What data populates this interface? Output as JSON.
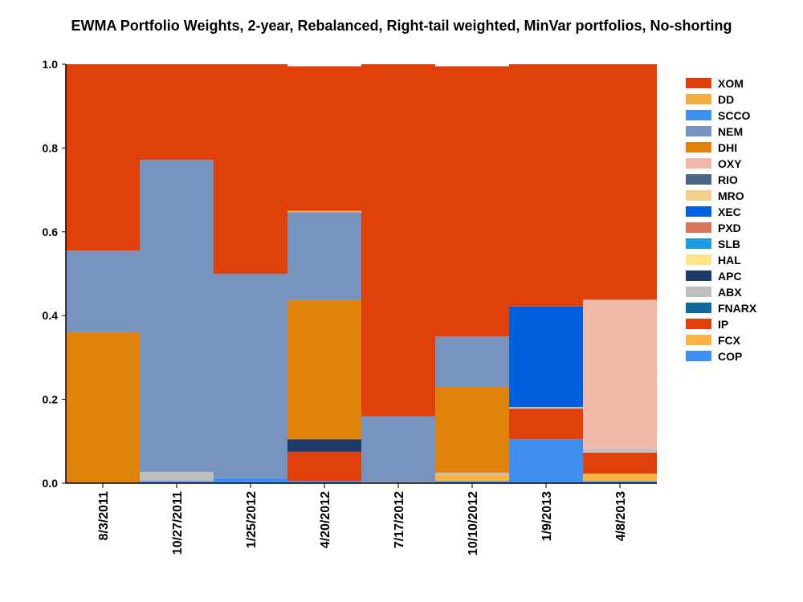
{
  "chart_data": {
    "type": "bar",
    "stacked": true,
    "title": "EWMA Portfolio Weights, 2-year, Rebalanced, Right-tail weighted, MinVar portfolios, No-shorting",
    "xlabel": "",
    "ylabel": "",
    "ylim": [
      0,
      1
    ],
    "yticks": [
      "0.0",
      "0.2",
      "0.4",
      "0.6",
      "0.8",
      "1.0"
    ],
    "grid": false,
    "legend_position": "right",
    "categories": [
      "8/3/2011",
      "10/27/2011",
      "1/25/2012",
      "4/20/2012",
      "7/17/2012",
      "10/10/2012",
      "1/9/2013",
      "4/8/2013"
    ],
    "series": [
      {
        "name": "XOM",
        "color": "#E0400A",
        "values": [
          0.445,
          0.228,
          0.5,
          0.345,
          0.84,
          0.645,
          0.578,
          0.562
        ]
      },
      {
        "name": "DD",
        "color": "#F4AD42",
        "values": [
          0,
          0,
          0,
          0.003,
          0,
          0,
          0,
          0
        ]
      },
      {
        "name": "SCCO",
        "color": "#3F8FEF",
        "values": [
          0,
          0,
          0,
          0,
          0,
          0,
          0,
          0
        ]
      },
      {
        "name": "NEM",
        "color": "#7893BE",
        "values": [
          0.195,
          0.745,
          0.488,
          0.21,
          0.158,
          0.12,
          0,
          0
        ]
      },
      {
        "name": "DHI",
        "color": "#E0830A",
        "values": [
          0.36,
          0,
          0,
          0.332,
          0,
          0.205,
          0,
          0
        ]
      },
      {
        "name": "OXY",
        "color": "#F0B9A9",
        "values": [
          0,
          0,
          0,
          0,
          0,
          0,
          0,
          0.355
        ]
      },
      {
        "name": "RIO",
        "color": "#4F6487",
        "values": [
          0,
          0,
          0,
          0,
          0,
          0,
          0,
          0
        ]
      },
      {
        "name": "MRO",
        "color": "#F2CF8E",
        "values": [
          0,
          0,
          0,
          0,
          0,
          0,
          0,
          0
        ]
      },
      {
        "name": "XEC",
        "color": "#0060DE",
        "values": [
          0,
          0,
          0,
          0,
          0,
          0,
          0.24,
          0
        ]
      },
      {
        "name": "PXD",
        "color": "#D5765A",
        "values": [
          0,
          0,
          0,
          0,
          0,
          0,
          0,
          0
        ]
      },
      {
        "name": "SLB",
        "color": "#1D9BDF",
        "values": [
          0,
          0,
          0,
          0,
          0,
          0,
          0,
          0
        ]
      },
      {
        "name": "HAL",
        "color": "#FDE485",
        "values": [
          0,
          0,
          0,
          0,
          0,
          0,
          0,
          0
        ]
      },
      {
        "name": "APC",
        "color": "#1D3A6A",
        "values": [
          0,
          0,
          0,
          0.03,
          0,
          0,
          0,
          0
        ]
      },
      {
        "name": "ABX",
        "color": "#BFBFBF",
        "values": [
          0,
          0.022,
          0,
          0,
          0.002,
          0.005,
          0.004,
          0.01
        ]
      },
      {
        "name": "FNARX",
        "color": "#0F6A9A",
        "values": [
          0,
          0,
          0,
          0,
          0,
          0,
          0,
          0
        ]
      },
      {
        "name": "IP",
        "color": "#E0400A",
        "values": [
          0,
          0,
          0,
          0.07,
          0,
          0,
          0.073,
          0.05
        ]
      },
      {
        "name": "FCX",
        "color": "#FDB445",
        "values": [
          0,
          0,
          0,
          0,
          0,
          0.015,
          0,
          0.018
        ]
      },
      {
        "name": "COP",
        "color": "#3F8FEF",
        "values": [
          0,
          0.005,
          0.012,
          0.005,
          0,
          0.005,
          0.105,
          0.005
        ]
      }
    ]
  }
}
